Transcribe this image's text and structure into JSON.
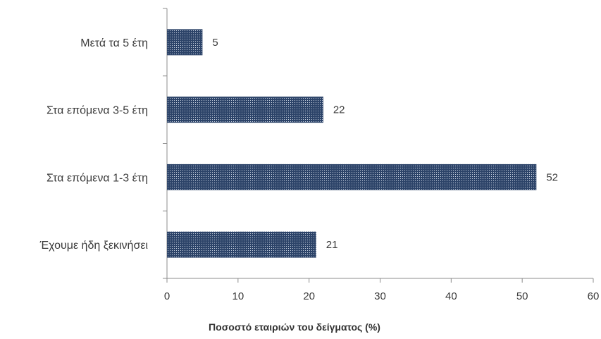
{
  "chart_data": {
    "type": "bar",
    "orientation": "horizontal",
    "categories": [
      "Έχουμε ήδη ξεκινήσει",
      "Στα επόμενα 1-3 έτη",
      "Στα επόμενα 3-5 έτη",
      "Μετά τα 5 έτη"
    ],
    "values": [
      21,
      52,
      22,
      5
    ],
    "data_labels": [
      "21",
      "52",
      "22",
      "5"
    ],
    "xlabel": "Ποσοστό εταιριών του δείγματος (%)",
    "ylabel": "",
    "xlim": [
      0,
      60
    ],
    "x_ticks": [
      0,
      10,
      20,
      30,
      40,
      50,
      60
    ],
    "x_tick_labels": [
      "0",
      "10",
      "20",
      "30",
      "40",
      "50",
      "60"
    ],
    "grid": false,
    "legend": "none",
    "bar_color": "#2d4469",
    "bar_dot_color": "#c9d2e0"
  }
}
